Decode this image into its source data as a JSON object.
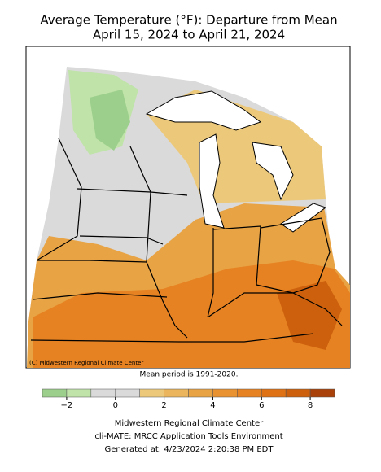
{
  "header": {
    "title": "Average Temperature (°F): Departure from Mean",
    "subtitle": "April 15, 2024 to April 21, 2024"
  },
  "map": {
    "credit": "(C) Midwestern Regional Climate Center",
    "note": "Mean period is 1991-2020."
  },
  "colorbar": {
    "bins": [
      -3,
      -2,
      -1,
      0,
      1,
      2,
      3,
      4,
      5,
      6,
      7,
      8,
      9
    ],
    "colors": [
      "#9ccf8c",
      "#bfe3a8",
      "#dadada",
      "#dadada",
      "#ecc97a",
      "#eab55c",
      "#e8a344",
      "#e89232",
      "#e68222",
      "#de7214",
      "#cc600c",
      "#a8420a"
    ],
    "ticks": [
      {
        "value": -2,
        "label": "−2"
      },
      0,
      2,
      4,
      6,
      8
    ]
  },
  "footer": {
    "lines": [
      "Midwestern Regional Climate Center",
      "cli-MATE: MRCC Application Tools Environment",
      "Generated at: 4/23/2024 2:20:38 PM EDT"
    ]
  }
}
